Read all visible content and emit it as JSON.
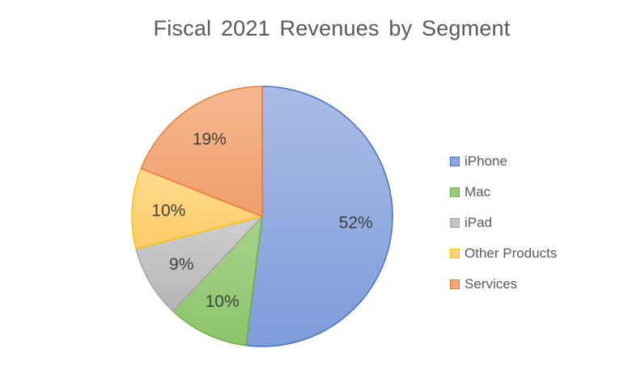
{
  "chart_data": {
    "type": "pie",
    "title": "Fiscal 2021 Revenues by Segment",
    "categories": [
      "iPhone",
      "Mac",
      "iPad",
      "Other Products",
      "Services"
    ],
    "values": [
      52,
      10,
      9,
      10,
      19
    ],
    "labels": [
      "52%",
      "10%",
      "9%",
      "10%",
      "19%"
    ],
    "unit": "%",
    "legend_position": "right",
    "colors": {
      "fill": [
        "#8FA9DF",
        "#9ACC7A",
        "#C3C3C3",
        "#FFD37A",
        "#F3A97B"
      ],
      "stroke": [
        "#4472C4",
        "#70AD47",
        "#A5A5A5",
        "#FFC000",
        "#ED7D31"
      ]
    }
  }
}
